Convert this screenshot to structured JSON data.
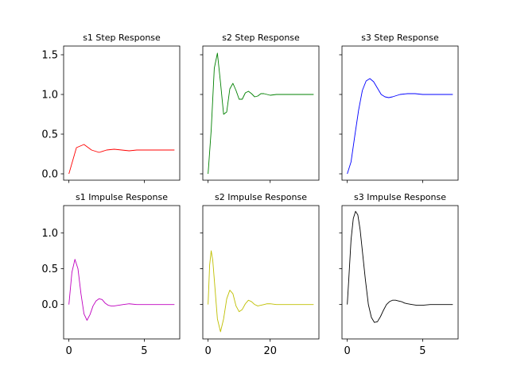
{
  "chart_data": [
    {
      "type": "line",
      "title": "s1 Step Response",
      "color": "#ff0000",
      "sharey_group": "top",
      "xlim": [
        -0.35,
        7.35
      ],
      "ylim": [
        -0.08,
        1.61
      ],
      "xticks": [
        0,
        5
      ],
      "yticks": [
        0.0,
        0.5,
        1.0,
        1.5
      ],
      "ytick_labels": [
        "0.0",
        "0.5",
        "1.0",
        "1.5"
      ],
      "show_xtick_labels": false,
      "show_ytick_labels": true,
      "x": [
        0,
        0.5,
        1.0,
        1.5,
        2.0,
        2.5,
        3.0,
        3.5,
        4.0,
        4.5,
        5.0,
        5.5,
        6.0,
        6.5,
        7.0
      ],
      "y": [
        0.0,
        0.33,
        0.37,
        0.3,
        0.27,
        0.3,
        0.31,
        0.3,
        0.29,
        0.3,
        0.3,
        0.3,
        0.3,
        0.3,
        0.3
      ]
    },
    {
      "type": "line",
      "title": "s2 Step Response",
      "color": "#008000",
      "sharey_group": "top",
      "xlim": [
        -1.7,
        35.7
      ],
      "ylim": [
        -0.08,
        1.61
      ],
      "xticks": [
        0,
        20
      ],
      "yticks": [
        0.0,
        0.5,
        1.0,
        1.5
      ],
      "show_xtick_labels": false,
      "show_ytick_labels": false,
      "x": [
        0,
        1,
        2,
        3,
        4,
        5,
        6,
        7,
        8,
        9,
        10,
        11,
        12,
        13,
        14,
        15,
        16,
        17,
        18,
        19,
        20,
        22,
        24,
        26,
        28,
        30,
        32,
        34
      ],
      "y": [
        0.0,
        0.55,
        1.33,
        1.52,
        1.15,
        0.75,
        0.78,
        1.07,
        1.14,
        1.05,
        0.94,
        0.94,
        1.02,
        1.04,
        1.01,
        0.97,
        0.98,
        1.01,
        1.01,
        1.0,
        0.99,
        1.0,
        1.0,
        1.0,
        1.0,
        1.0,
        1.0,
        1.0
      ]
    },
    {
      "type": "line",
      "title": "s3 Step Response",
      "color": "#0000ff",
      "sharey_group": "top",
      "xlim": [
        -0.35,
        7.35
      ],
      "ylim": [
        -0.08,
        1.61
      ],
      "xticks": [
        0,
        5
      ],
      "yticks": [
        0.0,
        0.5,
        1.0,
        1.5
      ],
      "show_xtick_labels": false,
      "show_ytick_labels": false,
      "x": [
        0,
        0.25,
        0.5,
        0.75,
        1.0,
        1.25,
        1.5,
        1.75,
        2.0,
        2.25,
        2.5,
        2.75,
        3.0,
        3.5,
        4.0,
        4.5,
        5.0,
        5.5,
        6.0,
        6.5,
        7.0
      ],
      "y": [
        0.0,
        0.15,
        0.48,
        0.8,
        1.05,
        1.17,
        1.2,
        1.16,
        1.08,
        1.0,
        0.97,
        0.96,
        0.97,
        1.0,
        1.01,
        1.01,
        1.0,
        1.0,
        1.0,
        1.0,
        1.0
      ]
    },
    {
      "type": "line",
      "title": "s1 Impulse Response",
      "color": "#bf00bf",
      "sharey_group": "bottom",
      "xlim": [
        -0.35,
        7.35
      ],
      "ylim": [
        -0.48,
        1.38
      ],
      "xticks": [
        0,
        5
      ],
      "xtick_labels": [
        "0",
        "5"
      ],
      "yticks": [
        0.0,
        0.5,
        1.0
      ],
      "ytick_labels": [
        "0.0",
        "0.5",
        "1.0"
      ],
      "show_xtick_labels": true,
      "show_ytick_labels": true,
      "x": [
        0,
        0.2,
        0.4,
        0.6,
        0.8,
        1.0,
        1.2,
        1.4,
        1.6,
        1.8,
        2.0,
        2.2,
        2.4,
        2.6,
        2.8,
        3.0,
        3.3,
        3.6,
        4.0,
        4.5,
        5.0,
        5.5,
        6.0,
        7.0
      ],
      "y": [
        0.0,
        0.45,
        0.63,
        0.5,
        0.15,
        -0.13,
        -0.22,
        -0.14,
        -0.02,
        0.05,
        0.08,
        0.07,
        0.02,
        -0.01,
        -0.02,
        -0.02,
        -0.01,
        0.0,
        0.01,
        0.0,
        0.0,
        0.0,
        0.0,
        0.0
      ]
    },
    {
      "type": "line",
      "title": "s2 Impulse Response",
      "color": "#bfbf00",
      "sharey_group": "bottom",
      "xlim": [
        -1.7,
        35.7
      ],
      "ylim": [
        -0.48,
        1.38
      ],
      "xticks": [
        0,
        20
      ],
      "xtick_labels": [
        "0",
        "20"
      ],
      "yticks": [
        0.0,
        0.5,
        1.0
      ],
      "show_xtick_labels": true,
      "show_ytick_labels": false,
      "x": [
        0,
        0.5,
        1,
        1.5,
        2,
        3,
        4,
        5,
        6,
        7,
        8,
        9,
        10,
        11,
        12,
        13,
        14,
        15,
        16,
        17,
        18,
        19,
        20,
        22,
        24,
        26,
        28,
        30,
        32,
        34
      ],
      "y": [
        0.0,
        0.55,
        0.75,
        0.62,
        0.35,
        -0.2,
        -0.38,
        -0.2,
        0.08,
        0.2,
        0.15,
        -0.02,
        -0.1,
        -0.07,
        0.01,
        0.06,
        0.04,
        0.0,
        -0.02,
        -0.01,
        0.0,
        0.01,
        0.01,
        0.0,
        0.0,
        0.0,
        0.0,
        0.0,
        0.0,
        0.0
      ]
    },
    {
      "type": "line",
      "title": "s3 Impulse Response",
      "color": "#000000",
      "sharey_group": "bottom",
      "xlim": [
        -0.35,
        7.35
      ],
      "ylim": [
        -0.48,
        1.38
      ],
      "xticks": [
        0,
        5
      ],
      "xtick_labels": [
        "0",
        "5"
      ],
      "yticks": [
        0.0,
        0.5,
        1.0
      ],
      "show_xtick_labels": true,
      "show_ytick_labels": false,
      "x": [
        0,
        0.1,
        0.25,
        0.4,
        0.55,
        0.7,
        0.85,
        1.0,
        1.2,
        1.4,
        1.6,
        1.8,
        2.0,
        2.2,
        2.4,
        2.6,
        2.8,
        3.0,
        3.2,
        3.4,
        3.6,
        3.8,
        4.0,
        4.3,
        4.6,
        5.0,
        5.5,
        6.0,
        6.5,
        7.0
      ],
      "y": [
        0.0,
        0.35,
        0.9,
        1.2,
        1.3,
        1.25,
        1.05,
        0.75,
        0.35,
        0.0,
        -0.18,
        -0.25,
        -0.24,
        -0.17,
        -0.08,
        0.0,
        0.04,
        0.06,
        0.06,
        0.05,
        0.04,
        0.02,
        0.01,
        0.0,
        -0.01,
        -0.01,
        0.0,
        0.0,
        0.0,
        0.0
      ]
    }
  ]
}
